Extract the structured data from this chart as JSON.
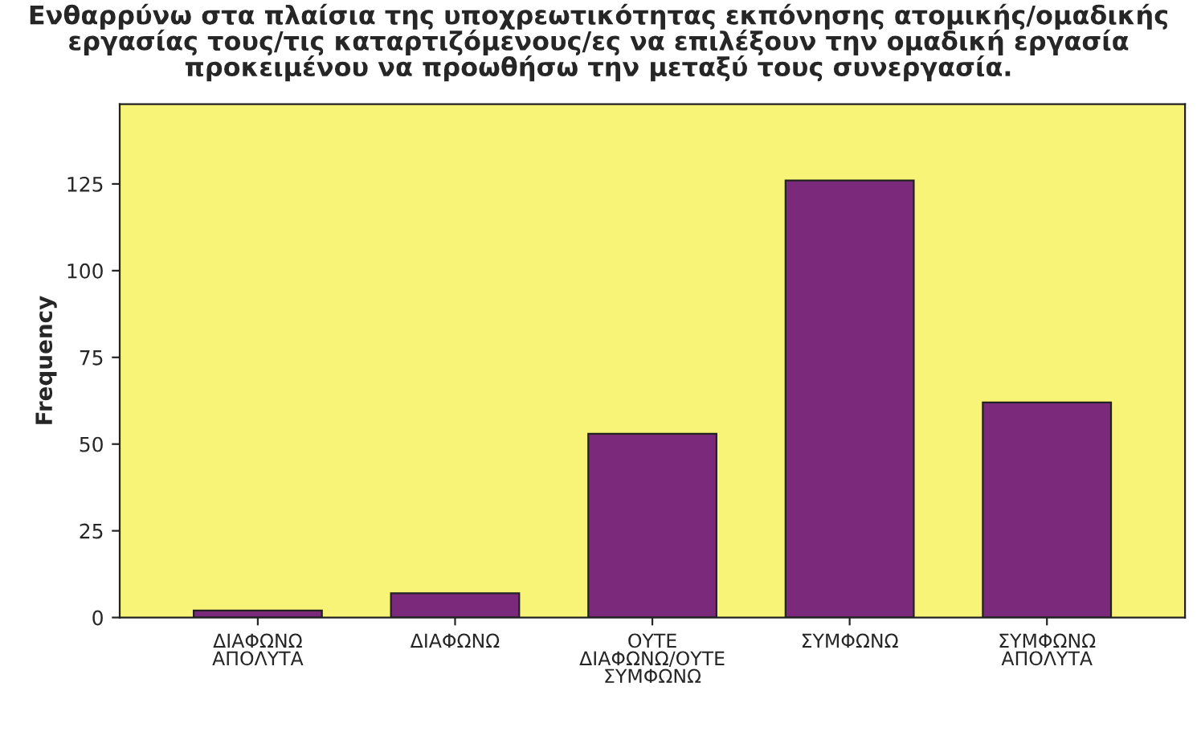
{
  "chart_data": {
    "type": "bar",
    "title": "Ενθαρρύνω στα πλαίσια της υποχρεωτικότητας εκπόνησης ατομικής/ομαδικής\nεργασίας τους/τις καταρτιζόμενους/ες να επιλέξουν την ομαδική εργασία\nπροκειμένου να προωθήσω την μεταξύ τους συνεργασία.",
    "ylabel": "Frequency",
    "categories": [
      "ΔΙΑΦΩΝΩ ΑΠΟΛΥΤΑ",
      "ΔΙΑΦΩΝΩ",
      "ΟΥΤΕ ΔΙΑΦΩΝΩ/ΟΥΤΕ ΣΥΜΦΩΝΩ",
      "ΣΥΜΦΩΝΩ",
      "ΣΥΜΦΩΝΩ ΑΠΟΛΥΤΑ"
    ],
    "values": [
      2,
      7,
      53,
      126,
      62
    ],
    "color": "#7b2a7b",
    "ylim": [
      0,
      148
    ],
    "yticks": [
      0,
      25,
      50,
      75,
      100,
      125
    ],
    "grid": false
  }
}
